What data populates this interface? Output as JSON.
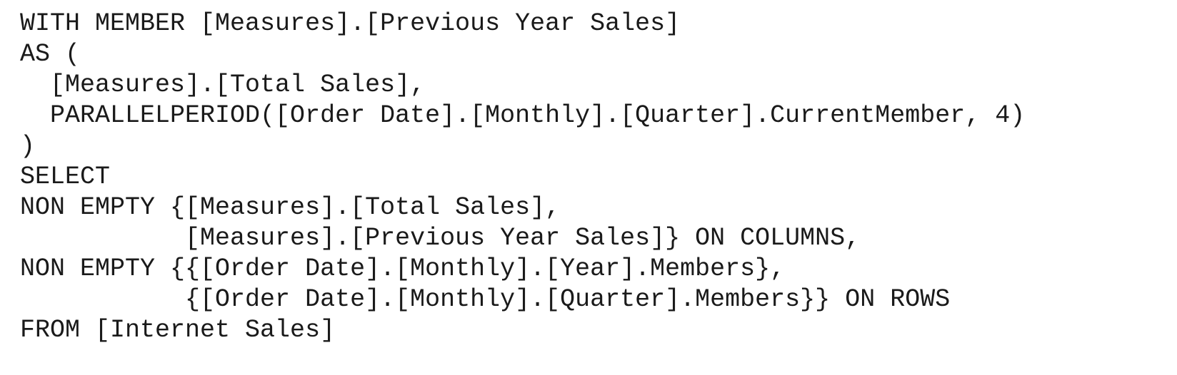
{
  "code": {
    "lines": [
      "WITH MEMBER [Measures].[Previous Year Sales]",
      "AS (",
      "  [Measures].[Total Sales],",
      "  PARALLELPERIOD([Order Date].[Monthly].[Quarter].CurrentMember, 4)",
      ")",
      "SELECT",
      "NON EMPTY {[Measures].[Total Sales],",
      "           [Measures].[Previous Year Sales]} ON COLUMNS,",
      "NON EMPTY {{[Order Date].[Monthly].[Year].Members},",
      "           {[Order Date].[Monthly].[Quarter].Members}} ON ROWS",
      "FROM [Internet Sales]"
    ]
  }
}
